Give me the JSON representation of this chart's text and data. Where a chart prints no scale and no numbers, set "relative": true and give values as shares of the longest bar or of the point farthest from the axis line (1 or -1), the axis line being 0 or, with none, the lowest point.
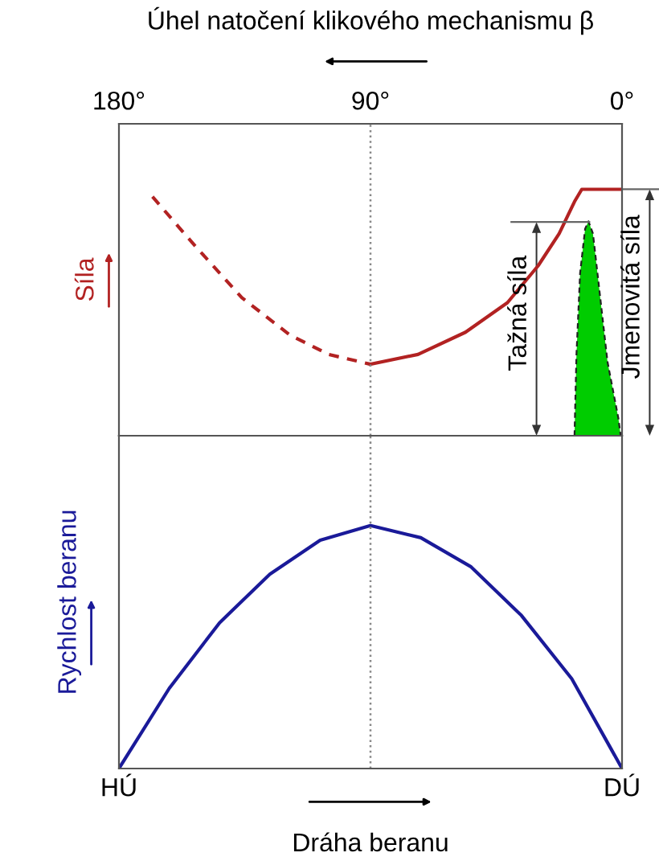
{
  "chart_data": [
    {
      "type": "line",
      "relative": true,
      "xlabel": "Úhel natočení klikového mechanismu β",
      "ylabel": "Síla",
      "xlim": [
        180,
        0
      ],
      "xticks": [
        {
          "value": 180,
          "label": "180°"
        },
        {
          "value": 90,
          "label": "90°"
        },
        {
          "value": 0,
          "label": "0°"
        }
      ],
      "series": [
        {
          "line_style": "dashed",
          "color": "#b22222",
          "x": [
            168,
            153.5,
            136,
            119,
            105,
            90
          ],
          "values": [
            0.97,
            0.78,
            0.56,
            0.41,
            0.33,
            0.29
          ]
        },
        {
          "line_style": "solid",
          "color": "#b22222",
          "x": [
            90,
            73,
            56,
            41,
            30,
            22.5,
            17,
            14.4,
            0
          ],
          "values": [
            0.29,
            0.33,
            0.42,
            0.54,
            0.69,
            0.82,
            0.95,
            1,
            1
          ]
        },
        {
          "type": "area",
          "color": "#00cc00",
          "x": [
            17,
            16.3,
            15,
            13.2,
            12,
            10.4,
            8.1,
            5.2,
            1.3,
            0.5
          ],
          "values": [
            0,
            0.33,
            0.66,
            0.84,
            0.87,
            0.82,
            0.59,
            0.3,
            0.07,
            0
          ]
        }
      ],
      "ref_lines": [
        {
          "axis": "x",
          "value": 90,
          "color": "#888888",
          "line_style": "dotted"
        }
      ],
      "annotations": [
        "Tažná síla",
        "Jmenovitá síla"
      ]
    },
    {
      "type": "line",
      "relative": true,
      "xlabel": "Dráha beranu",
      "ylabel": "Rychlost beranu",
      "categories": [
        "HÚ",
        null,
        null,
        null,
        null,
        null,
        null,
        null,
        null,
        null,
        "DÚ"
      ],
      "series": [
        {
          "line_style": "solid",
          "color": "#1a1a99",
          "values": [
            0,
            0.33,
            0.6,
            0.8,
            0.94,
            1,
            0.95,
            0.83,
            0.63,
            0.37,
            0
          ]
        }
      ]
    }
  ]
}
